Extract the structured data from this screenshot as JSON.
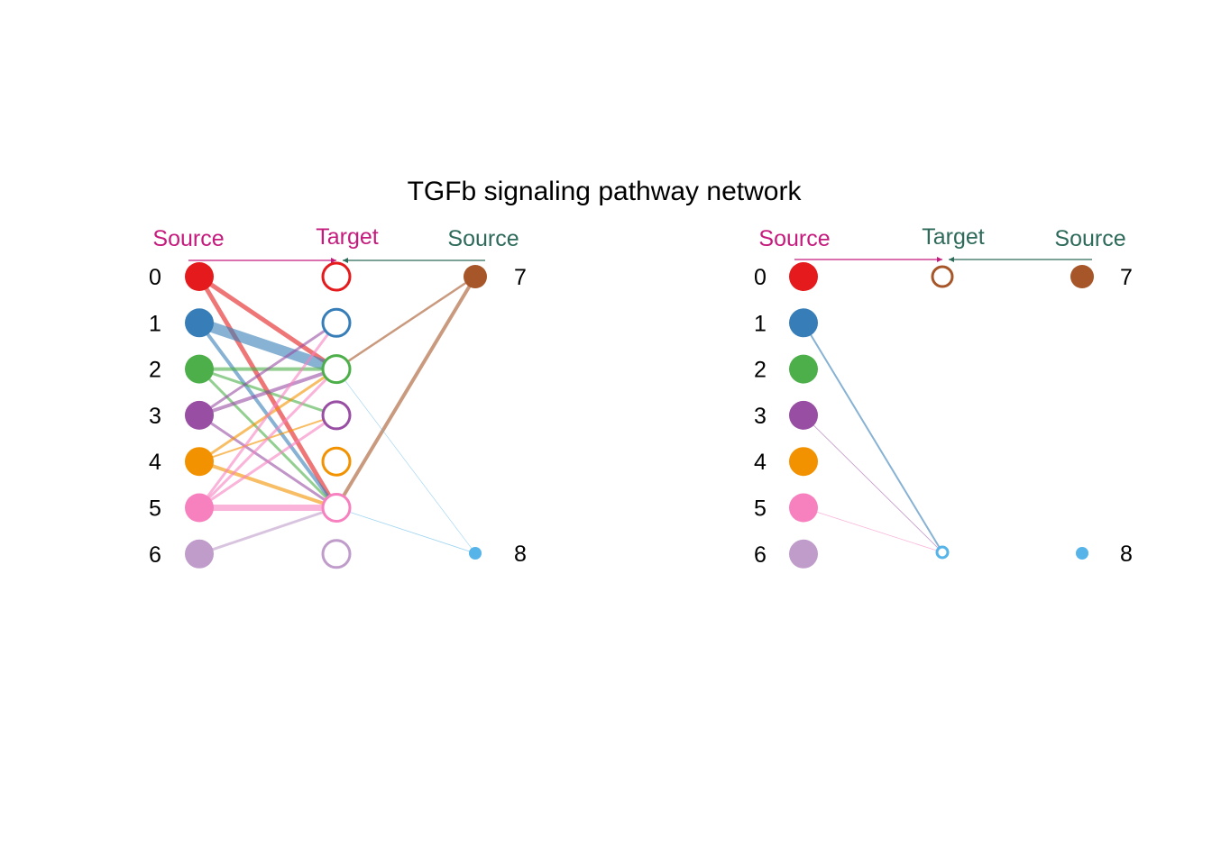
{
  "title": "TGFb signaling pathway network",
  "header": {
    "source_left": "Source",
    "target": "Target",
    "source_right": "Source",
    "source_color": "#c51b7d",
    "target_color": "#c51b7d",
    "source_right_color": "#2d6a5a"
  },
  "groups": [
    {
      "id": "0",
      "color": "#e41a1c"
    },
    {
      "id": "1",
      "color": "#377eb8"
    },
    {
      "id": "2",
      "color": "#4daf4a"
    },
    {
      "id": "3",
      "color": "#984ea3"
    },
    {
      "id": "4",
      "color": "#f39200"
    },
    {
      "id": "5",
      "color": "#f781bf"
    },
    {
      "id": "6",
      "color": "#c09ccb"
    },
    {
      "id": "7",
      "color": "#a65628"
    },
    {
      "id": "8",
      "color": "#56b4e9"
    }
  ],
  "panels": [
    {
      "name": "left",
      "sources_left": [
        "0",
        "1",
        "2",
        "3",
        "4",
        "5",
        "6"
      ],
      "targets": [
        "0",
        "1",
        "2",
        "3",
        "4",
        "5",
        "6"
      ],
      "sources_right": [
        "7",
        "8"
      ],
      "edges": [
        {
          "from": "0",
          "to": "2",
          "weight": 5
        },
        {
          "from": "0",
          "to": "5",
          "weight": 5
        },
        {
          "from": "1",
          "to": "2",
          "weight": 12
        },
        {
          "from": "1",
          "to": "5",
          "weight": 4
        },
        {
          "from": "2",
          "to": "2",
          "weight": 4
        },
        {
          "from": "2",
          "to": "3",
          "weight": 3
        },
        {
          "from": "2",
          "to": "5",
          "weight": 3
        },
        {
          "from": "3",
          "to": "1",
          "weight": 3
        },
        {
          "from": "3",
          "to": "2",
          "weight": 4
        },
        {
          "from": "3",
          "to": "5",
          "weight": 3
        },
        {
          "from": "4",
          "to": "2",
          "weight": 3
        },
        {
          "from": "4",
          "to": "3",
          "weight": 2
        },
        {
          "from": "4",
          "to": "5",
          "weight": 4
        },
        {
          "from": "5",
          "to": "1",
          "weight": 3
        },
        {
          "from": "5",
          "to": "2",
          "weight": 3
        },
        {
          "from": "5",
          "to": "3",
          "weight": 3
        },
        {
          "from": "5",
          "to": "5",
          "weight": 7
        },
        {
          "from": "6",
          "to": "5",
          "weight": 3
        },
        {
          "from": "7",
          "to": "2",
          "weight": 2.5
        },
        {
          "from": "7",
          "to": "5",
          "weight": 4
        },
        {
          "from": "8",
          "to": "2",
          "weight": 0.6
        },
        {
          "from": "8",
          "to": "5",
          "weight": 0.8
        }
      ]
    },
    {
      "name": "right",
      "sources_left": [
        "0",
        "1",
        "2",
        "3",
        "4",
        "5",
        "6"
      ],
      "targets": [
        "7",
        "8"
      ],
      "sources_right": [
        "7",
        "8"
      ],
      "edges": [
        {
          "from": "1",
          "to": "8",
          "weight": 2
        },
        {
          "from": "3",
          "to": "8",
          "weight": 0.8
        },
        {
          "from": "5",
          "to": "8",
          "weight": 0.8
        }
      ]
    }
  ]
}
